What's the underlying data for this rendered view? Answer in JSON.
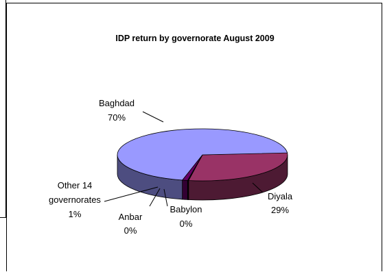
{
  "chart_data": {
    "type": "pie",
    "style": "3d",
    "title": "IDP return by governorate August 2009",
    "legend": "none",
    "slices": [
      {
        "name": "Baghdad",
        "value": 70,
        "label": "70%",
        "color": "#9999ff"
      },
      {
        "name": "Diyala",
        "value": 29,
        "label": "29%",
        "color": "#993366"
      },
      {
        "name": "Babylon",
        "value": 0,
        "label": "0%",
        "color": "#ffffcc"
      },
      {
        "name": "Anbar",
        "value": 0,
        "label": "0%",
        "color": "#ccffff"
      },
      {
        "name": "Other 14 governorates",
        "value": 1,
        "label": "1%",
        "color": "#660066"
      }
    ]
  },
  "labels": {
    "baghdad_name": "Baghdad",
    "baghdad_pct": "70%",
    "diyala_name": "Diyala",
    "diyala_pct": "29%",
    "babylon_name": "Babylon",
    "babylon_pct": "0%",
    "anbar_name": "Anbar",
    "anbar_pct": "0%",
    "other_line1": "Other 14",
    "other_line2": "governorates",
    "other_pct": "1%"
  }
}
